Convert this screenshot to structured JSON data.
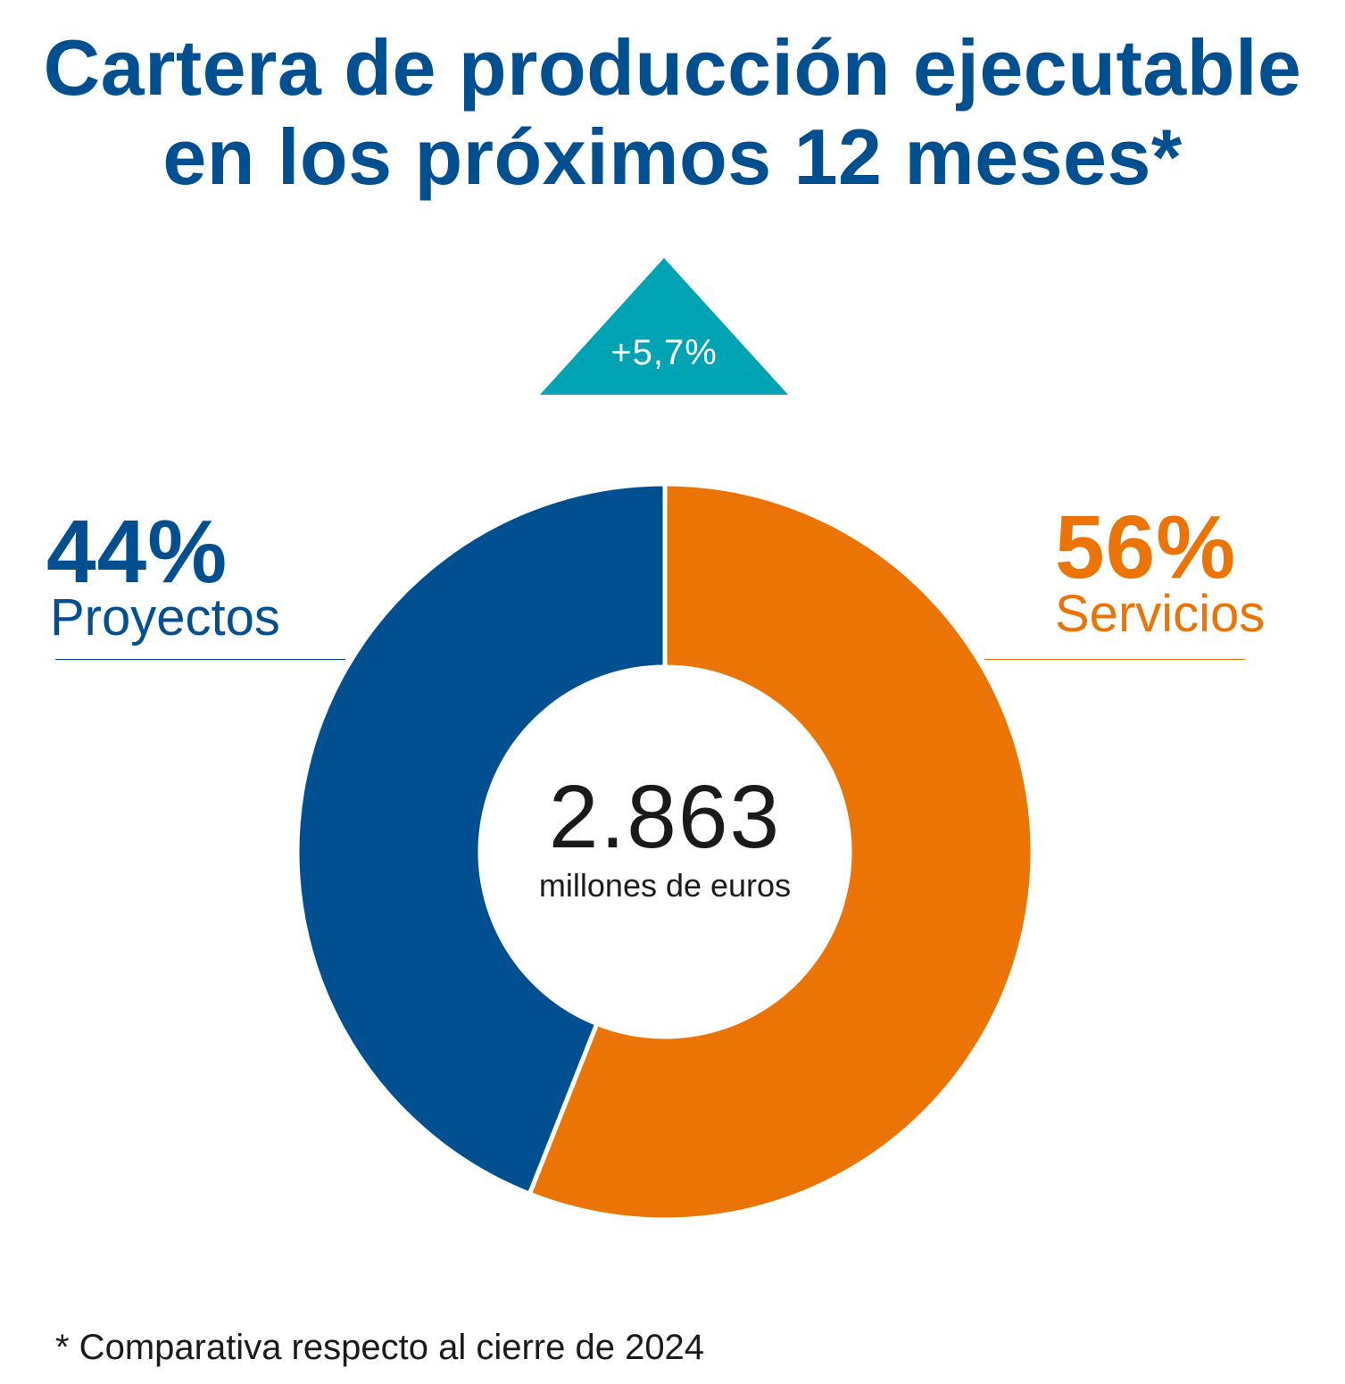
{
  "title": {
    "line1": "Cartera de producción ejecutable",
    "line2": "en los próximos 12 meses*"
  },
  "change_badge": {
    "text": "+5,7%",
    "direction": "up",
    "color": "#00A3B4"
  },
  "chart_data": {
    "type": "pie",
    "variant": "donut",
    "title": "Cartera de producción ejecutable en los próximos 12 meses*",
    "total": {
      "value": "2.863",
      "unit": "millones de euros"
    },
    "slices": [
      {
        "label": "Servicios",
        "value": 56,
        "value_label": "56%",
        "color": "#EC7404"
      },
      {
        "label": "Proyectos",
        "value": 44,
        "value_label": "44%",
        "color": "#004F90"
      }
    ],
    "start_angle": "12 o'clock",
    "direction": "clockwise"
  },
  "footnote": "* Comparativa respecto al cierre de 2024",
  "colors": {
    "title": "#004F90",
    "text": "#1a1a1a",
    "background": "#ffffff"
  }
}
